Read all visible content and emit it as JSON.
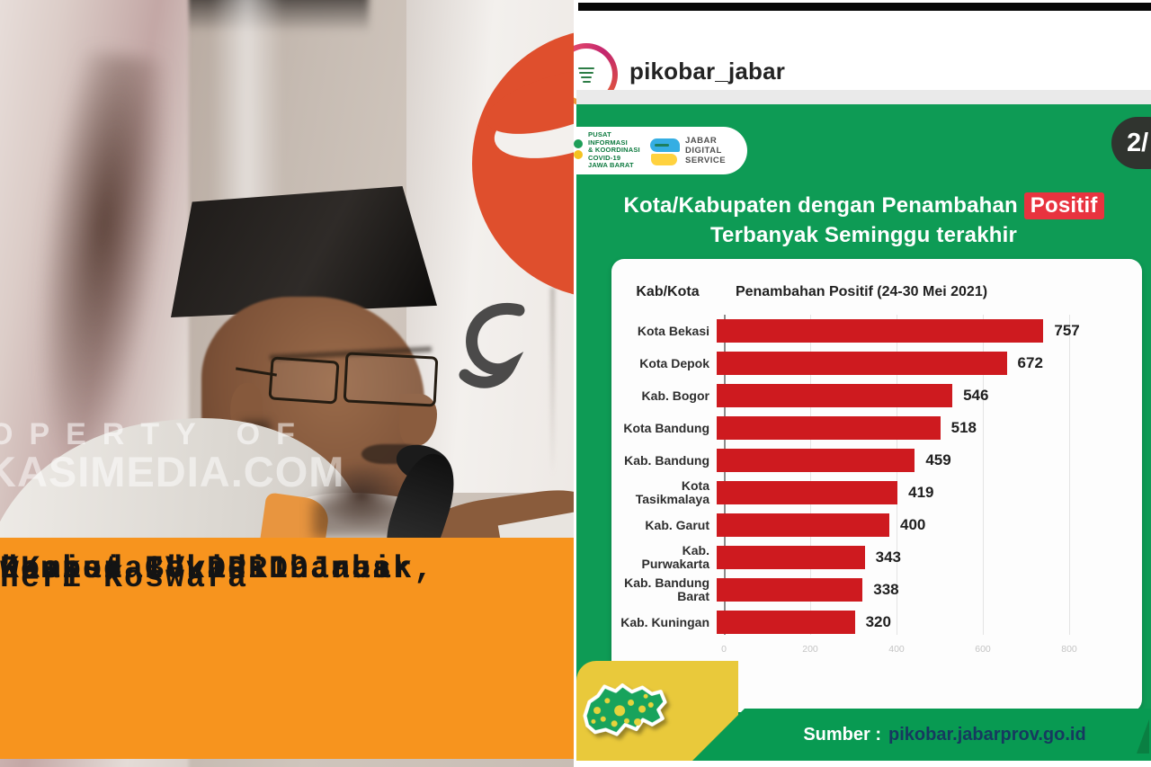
{
  "photo": {
    "watermark": {
      "line1": "OPERTY OF",
      "line2": "KASIMEDIA.COM"
    },
    "caption": {
      "lines": [
        "\"Kasus Covid-19 naik,",
        "Pemkot Bekasi harus",
        "waspada!\""
      ],
      "name": "Heri Koswara",
      "role": "Komisi IV DPRD Jabar",
      "bg_color": "#F7941E"
    }
  },
  "instagram": {
    "username": "pikobar_jabar",
    "page_badge": "2/"
  },
  "infographic": {
    "org_logo_lines": [
      "PUSAT INFORMASI",
      "& KOORDINASI",
      "COVID-19",
      "JAWA BARAT"
    ],
    "jds_logo_lines": [
      "JABAR",
      "DIGITAL",
      "SERVICE"
    ],
    "title_prefix": "Kota/Kabupaten dengan Penambahan",
    "title_highlight": "Positif",
    "title_line2": "Terbanyak Seminggu terakhir",
    "footer_label": "Sumber :",
    "footer_link": "pikobar.jabarprov.go.id",
    "colors": {
      "green": "#0E9B55",
      "footer_green": "#089A52",
      "bar_red": "#CE1A1F",
      "highlight_red": "#E8333F",
      "corner_yellow": "#E9C93B",
      "banner_orange": "#F7941E"
    }
  },
  "chart_data": {
    "type": "bar",
    "orientation": "horizontal",
    "title": "Kota/Kabupaten dengan Penambahan Positif Terbanyak Seminggu terakhir",
    "col_header_left": "Kab/Kota",
    "col_header_right": "Penambahan Positif (24-30 Mei 2021)",
    "categories": [
      "Kota Bekasi",
      "Kota Depok",
      "Kab. Bogor",
      "Kota Bandung",
      "Kab. Bandung",
      "Kota Tasikmalaya",
      "Kab. Garut",
      "Kab. Purwakarta",
      "Kab. Bandung Barat",
      "Kab. Kuningan"
    ],
    "values": [
      757,
      672,
      546,
      518,
      459,
      419,
      400,
      343,
      338,
      320
    ],
    "xlim": [
      0,
      800
    ],
    "xticks": [
      0,
      200,
      400,
      600,
      800
    ],
    "grid": true,
    "bar_color": "#CE1A1F",
    "legend": "none"
  }
}
